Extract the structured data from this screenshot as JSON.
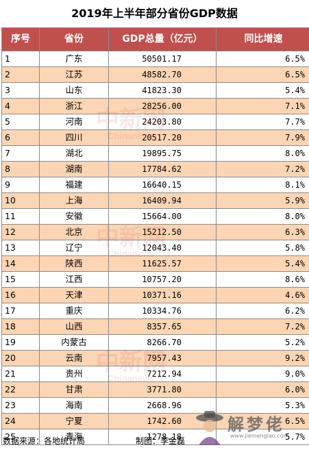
{
  "title": "2019年上半年部分省份GDP数据",
  "headers": {
    "rank": "序号",
    "province": "省份",
    "gdp": "GDP总量（亿元）",
    "growth": "同比增速"
  },
  "rows": [
    {
      "rank": "1",
      "province": "广东",
      "gdp": "50501.17",
      "growth": "6.5%"
    },
    {
      "rank": "2",
      "province": "江苏",
      "gdp": "48582.70",
      "growth": "6.5%"
    },
    {
      "rank": "3",
      "province": "山东",
      "gdp": "41823.30",
      "growth": "5.4%"
    },
    {
      "rank": "4",
      "province": "浙江",
      "gdp": "28256.00",
      "growth": "7.1%"
    },
    {
      "rank": "5",
      "province": "河南",
      "gdp": "24203.80",
      "growth": "7.7%"
    },
    {
      "rank": "6",
      "province": "四川",
      "gdp": "20517.20",
      "growth": "7.9%"
    },
    {
      "rank": "7",
      "province": "湖北",
      "gdp": "19895.75",
      "growth": "8.0%"
    },
    {
      "rank": "8",
      "province": "湖南",
      "gdp": "17784.62",
      "growth": "7.2%"
    },
    {
      "rank": "9",
      "province": "福建",
      "gdp": "16640.15",
      "growth": "8.1%"
    },
    {
      "rank": "10",
      "province": "上海",
      "gdp": "16409.94",
      "growth": "5.9%"
    },
    {
      "rank": "11",
      "province": "安徽",
      "gdp": "15664.00",
      "growth": "8.0%"
    },
    {
      "rank": "12",
      "province": "北京",
      "gdp": "15212.50",
      "growth": "6.3%"
    },
    {
      "rank": "13",
      "province": "辽宁",
      "gdp": "12043.40",
      "growth": "5.8%"
    },
    {
      "rank": "14",
      "province": "陕西",
      "gdp": "11625.57",
      "growth": "5.4%"
    },
    {
      "rank": "15",
      "province": "江西",
      "gdp": "10757.20",
      "growth": "8.6%"
    },
    {
      "rank": "16",
      "province": "天津",
      "gdp": "10371.16",
      "growth": "4.6%"
    },
    {
      "rank": "17",
      "province": "重庆",
      "gdp": "10334.76",
      "growth": "6.2%"
    },
    {
      "rank": "18",
      "province": "山西",
      "gdp": "8357.65",
      "growth": "7.2%"
    },
    {
      "rank": "19",
      "province": "内蒙古",
      "gdp": "8266.70",
      "growth": "5.2%"
    },
    {
      "rank": "20",
      "province": "云南",
      "gdp": "7957.43",
      "growth": "9.2%"
    },
    {
      "rank": "21",
      "province": "贵州",
      "gdp": "7212.94",
      "growth": "9.0%"
    },
    {
      "rank": "22",
      "province": "甘肃",
      "gdp": "3771.80",
      "growth": "6.0%"
    },
    {
      "rank": "23",
      "province": "海南",
      "gdp": "2668.96",
      "growth": "5.3%"
    },
    {
      "rank": "24",
      "province": "宁夏",
      "gdp": "1742.60",
      "growth": "6.5%"
    },
    {
      "rank": "25",
      "province": "青海",
      "gdp": "1278.18",
      "growth": "5.7%"
    }
  ],
  "footer": {
    "source": "数据来源：各地统计局",
    "author": "制图：李金磊"
  },
  "watermark": {
    "cn": "中新网",
    "en": "Chinanews"
  },
  "site_logo": {
    "text": "解梦佬",
    "url": "www.jiemenglao.com",
    "icon": "fortune-teller-icon"
  },
  "colors": {
    "header_bg": "#c0504d",
    "alt_row_bg": "#fcd5b4",
    "grid": "#8a8a8a"
  }
}
